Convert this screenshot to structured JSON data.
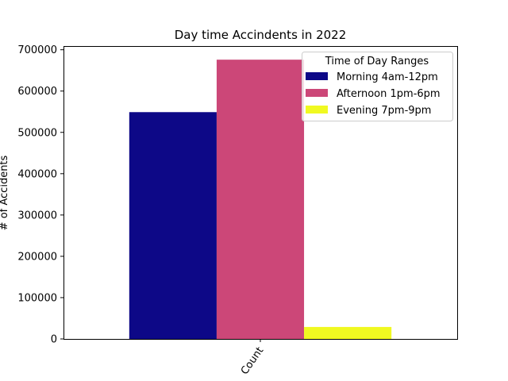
{
  "chart_data": {
    "type": "bar",
    "title": "Day time Accindents in 2022",
    "xlabel": "",
    "ylabel": "# of Accidents",
    "categories": [
      "Count"
    ],
    "series": [
      {
        "name": "Morning 4am-12pm",
        "values": [
          549000
        ],
        "color": "#0d0887"
      },
      {
        "name": "Afternoon 1pm-6pm",
        "values": [
          676000
        ],
        "color": "#cc4778"
      },
      {
        "name": "Evening 7pm-9pm",
        "values": [
          29000
        ],
        "color": "#f0f921"
      }
    ],
    "ylim": [
      0,
      709000
    ],
    "yticks": [
      "0",
      "100000",
      "200000",
      "300000",
      "400000",
      "500000",
      "600000",
      "700000"
    ],
    "legend": {
      "title": "Time of Day Ranges",
      "placement": "top-right"
    },
    "grid": false
  }
}
